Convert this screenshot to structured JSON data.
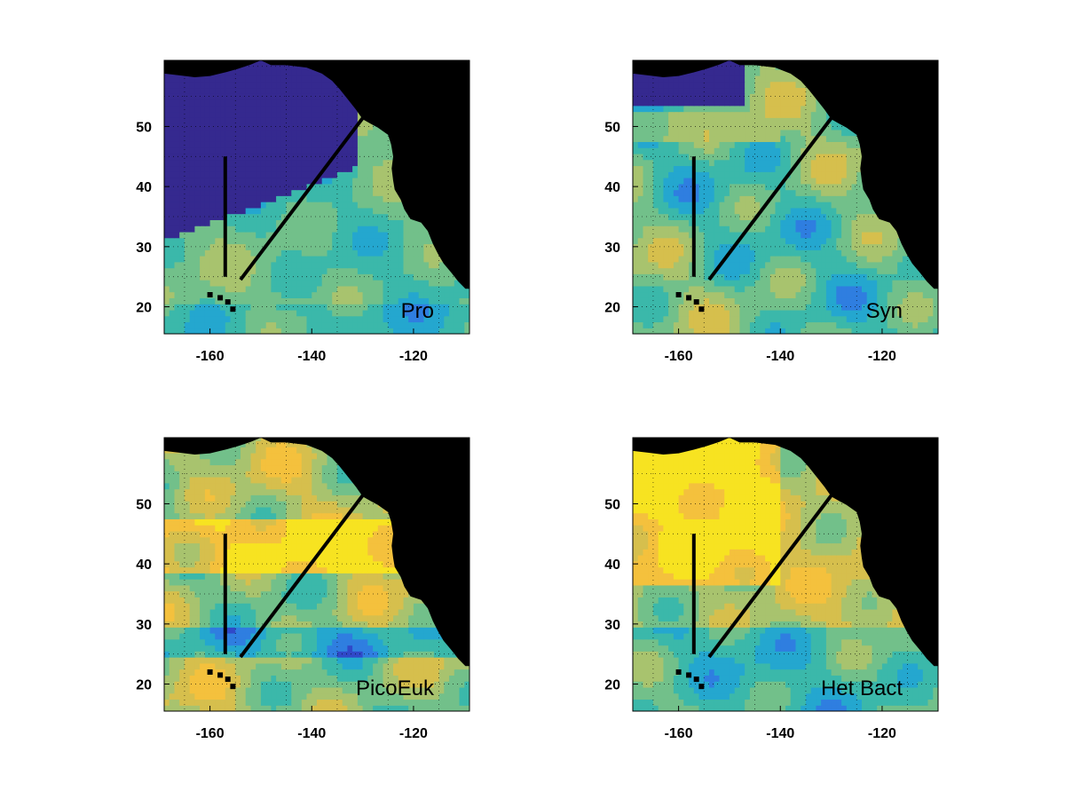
{
  "colors": {
    "land": "#000000",
    "colormap": [
      "#35298f",
      "#3049c9",
      "#2f7ee0",
      "#24a7cf",
      "#3bb8aa",
      "#72c08a",
      "#a8c36e",
      "#d6bf4d",
      "#f4c13d",
      "#f7e321"
    ]
  },
  "xaxis": {
    "range": [
      -169,
      -109
    ],
    "ticks": [
      -160,
      -140,
      -120
    ],
    "tick_labels": [
      "-160",
      "-140",
      "-120"
    ]
  },
  "yaxis": {
    "range": [
      15.5,
      61
    ],
    "ticks": [
      20,
      30,
      40,
      50
    ],
    "tick_labels": [
      "20",
      "30",
      "40",
      "50"
    ]
  },
  "grid": true,
  "transects": [
    {
      "lon": [
        -157,
        -157
      ],
      "lat": [
        45,
        25
      ]
    },
    {
      "lon": [
        -154,
        -129
      ],
      "lat": [
        24.5,
        52.5
      ]
    }
  ],
  "panels": [
    {
      "label": "Pro"
    },
    {
      "label": "Syn"
    },
    {
      "label": "PicoEuk"
    },
    {
      "label": "Het Bact"
    }
  ]
}
